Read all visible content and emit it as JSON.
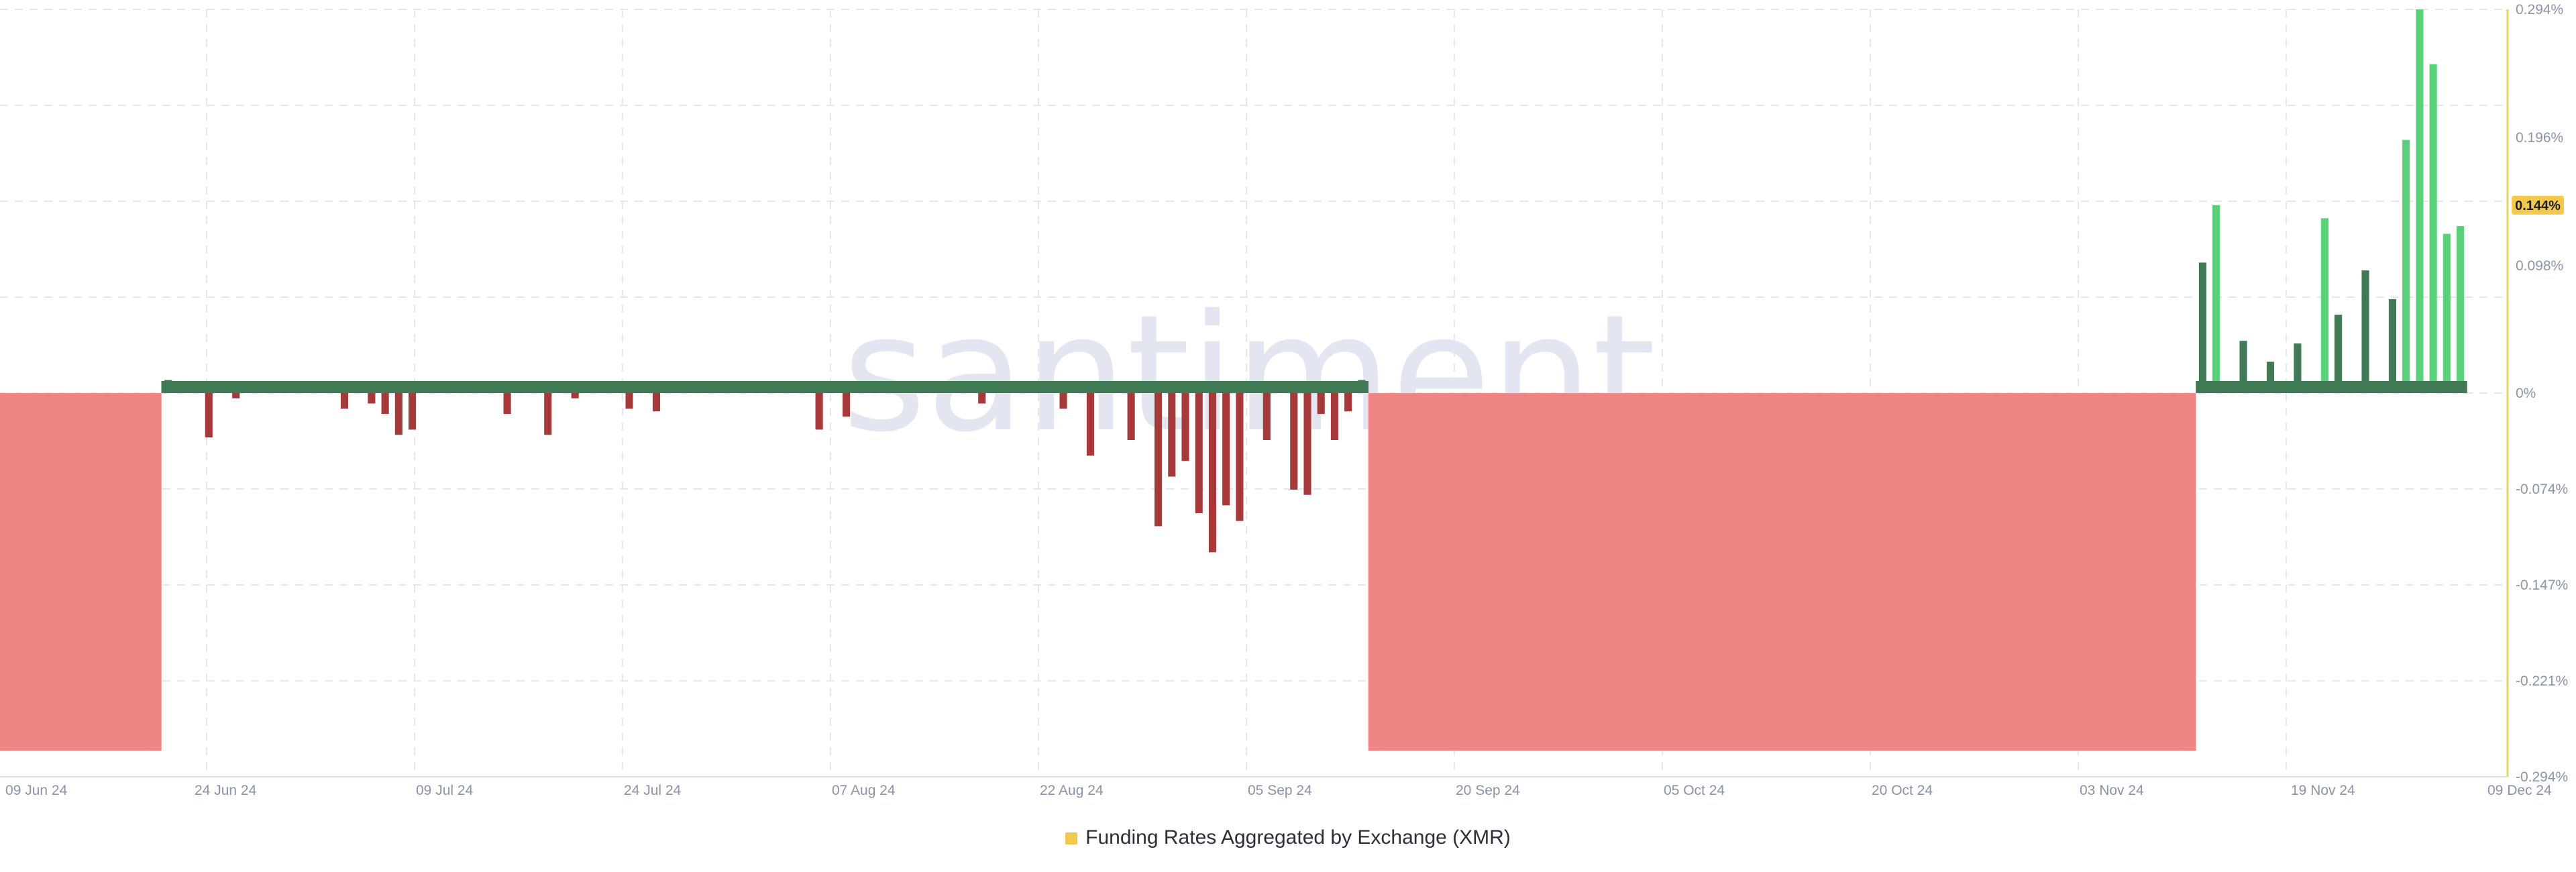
{
  "chart_data": {
    "type": "bar",
    "watermark": "santiment.",
    "x_ticks": [
      "09 Jun 24",
      "24 Jun 24",
      "09 Jul 24",
      "24 Jul 24",
      "07 Aug 24",
      "22 Aug 24",
      "05 Sep 24",
      "20 Sep 24",
      "05 Oct 24",
      "20 Oct 24",
      "03 Nov 24",
      "19 Nov 24",
      "09 Dec 24"
    ],
    "y_ticks": [
      "0.294%",
      "0.196%",
      "0.098%",
      "0%",
      "-0.074%",
      "-0.147%",
      "-0.221%",
      "-0.294%"
    ],
    "ylim": [
      -0.294,
      0.294
    ],
    "current_value_label": "0.144%",
    "legend": [
      {
        "name": "Funding Rates Aggregated by Exchange (XMR)",
        "color": "#f2c94c"
      }
    ],
    "grid": true,
    "colors": {
      "positive_old": "#3f7a55",
      "negative_old": "#a63a3a",
      "positive_recent": "#5ad07a",
      "negative_missing": "#f08585",
      "axis_accent": "#e6d36a",
      "badge": "#f2c94c"
    },
    "series": [
      {
        "values": [
          {
            "x": "2024-06-09",
            "y": -0.274
          },
          {
            "x": "2024-06-20",
            "y": -0.274
          },
          {
            "x": "2024-06-21",
            "y": 0.01
          },
          {
            "x": "2024-06-24",
            "y": -0.034
          },
          {
            "x": "2024-06-26",
            "y": -0.004
          },
          {
            "x": "2024-07-04",
            "y": -0.012
          },
          {
            "x": "2024-07-06",
            "y": -0.008
          },
          {
            "x": "2024-07-07",
            "y": -0.016
          },
          {
            "x": "2024-07-08",
            "y": -0.032
          },
          {
            "x": "2024-07-09",
            "y": -0.028
          },
          {
            "x": "2024-07-16",
            "y": -0.016
          },
          {
            "x": "2024-07-19",
            "y": -0.032
          },
          {
            "x": "2024-07-21",
            "y": -0.004
          },
          {
            "x": "2024-07-25",
            "y": -0.012
          },
          {
            "x": "2024-07-27",
            "y": -0.014
          },
          {
            "x": "2024-08-08",
            "y": -0.028
          },
          {
            "x": "2024-08-10",
            "y": -0.018
          },
          {
            "x": "2024-08-20",
            "y": -0.008
          },
          {
            "x": "2024-08-26",
            "y": -0.012
          },
          {
            "x": "2024-08-28",
            "y": -0.048
          },
          {
            "x": "2024-08-31",
            "y": -0.036
          },
          {
            "x": "2024-09-02",
            "y": -0.102
          },
          {
            "x": "2024-09-03",
            "y": -0.064
          },
          {
            "x": "2024-09-04",
            "y": -0.052
          },
          {
            "x": "2024-09-05",
            "y": -0.092
          },
          {
            "x": "2024-09-06",
            "y": -0.122
          },
          {
            "x": "2024-09-07",
            "y": -0.086
          },
          {
            "x": "2024-09-08",
            "y": -0.098
          },
          {
            "x": "2024-09-10",
            "y": -0.036
          },
          {
            "x": "2024-09-12",
            "y": -0.074
          },
          {
            "x": "2024-09-13",
            "y": -0.078
          },
          {
            "x": "2024-09-14",
            "y": -0.016
          },
          {
            "x": "2024-09-15",
            "y": -0.036
          },
          {
            "x": "2024-09-16",
            "y": -0.014
          },
          {
            "x": "2024-09-17",
            "y": 0.01
          },
          {
            "x": "2024-09-18",
            "y": -0.274
          },
          {
            "x": "2024-11-17",
            "y": -0.274
          },
          {
            "x": "2024-11-18",
            "y": 0.1
          },
          {
            "x": "2024-11-19",
            "y": 0.144
          },
          {
            "x": "2024-11-21",
            "y": 0.04
          },
          {
            "x": "2024-11-23",
            "y": 0.024
          },
          {
            "x": "2024-11-25",
            "y": 0.038
          },
          {
            "x": "2024-11-27",
            "y": 0.134
          },
          {
            "x": "2024-11-28",
            "y": 0.06
          },
          {
            "x": "2024-11-30",
            "y": 0.094
          },
          {
            "x": "2024-12-02",
            "y": 0.072
          },
          {
            "x": "2024-12-03",
            "y": 0.194
          },
          {
            "x": "2024-12-04",
            "y": 0.294
          },
          {
            "x": "2024-12-05",
            "y": 0.252
          },
          {
            "x": "2024-12-06",
            "y": 0.122
          },
          {
            "x": "2024-12-07",
            "y": 0.128
          }
        ]
      }
    ]
  }
}
